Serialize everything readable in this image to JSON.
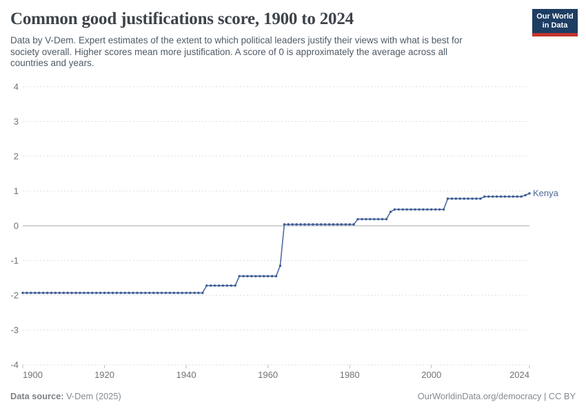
{
  "header": {
    "title": "Common good justifications score, 1900 to 2024",
    "subtitle_lines": [
      "Data by V-Dem. Expert estimates of the extent to which political leaders justify their views with what is best for",
      "society overall. Higher scores mean more justification. A score of 0 is approximately the average across all",
      "countries and years."
    ],
    "logo": {
      "line1": "Our World",
      "line2": "in Data"
    }
  },
  "footer": {
    "source_label": "Data source:",
    "source_value": " V-Dem (2025)",
    "credit": "OurWorldinData.org/democracy | CC BY"
  },
  "colors": {
    "logo_navy": "#1d3d63",
    "logo_red": "#c4352c",
    "line": "#4e6ba3",
    "marker": "#3d5c93",
    "series_label": "#4c6a9c",
    "grid": "#dcdee0",
    "zero_line": "#a0a6ab",
    "axis_text": "#6e7276",
    "tick_mark": "#b7babd"
  },
  "chart_data": {
    "type": "line",
    "title": "Common good justifications score, 1900 to 2024",
    "xlim": [
      1900,
      2024
    ],
    "ylim": [
      -4,
      4
    ],
    "x_ticks": [
      1900,
      1920,
      1940,
      1960,
      1980,
      2000,
      2024
    ],
    "y_ticks": [
      4,
      3,
      2,
      1,
      0,
      -1,
      -2,
      -3,
      -4
    ],
    "grid": "horizontal dashed, solid zero line",
    "legend_position": "end-of-line label",
    "series": [
      {
        "name": "Kenya",
        "start_year": 1900,
        "end_year": 2024,
        "segments": [
          {
            "years": "1900-1944",
            "value": -1.93
          },
          {
            "years": "1945-1952",
            "value": -1.72
          },
          {
            "years": "1953-1962",
            "value": -1.45
          },
          {
            "years": "1963",
            "value": -1.15
          },
          {
            "years": "1964-1981",
            "value": 0.04
          },
          {
            "years": "1982-1989",
            "value": 0.19
          },
          {
            "years": "1990",
            "value": 0.4
          },
          {
            "years": "1991-2003",
            "value": 0.47
          },
          {
            "years": "2004-2012",
            "value": 0.78
          },
          {
            "years": "2013-2022",
            "value": 0.84
          },
          {
            "years": "2023",
            "value": 0.88
          },
          {
            "years": "2024",
            "value": 0.93
          }
        ],
        "values": [
          -1.93,
          -1.93,
          -1.93,
          -1.93,
          -1.93,
          -1.93,
          -1.93,
          -1.93,
          -1.93,
          -1.93,
          -1.93,
          -1.93,
          -1.93,
          -1.93,
          -1.93,
          -1.93,
          -1.93,
          -1.93,
          -1.93,
          -1.93,
          -1.93,
          -1.93,
          -1.93,
          -1.93,
          -1.93,
          -1.93,
          -1.93,
          -1.93,
          -1.93,
          -1.93,
          -1.93,
          -1.93,
          -1.93,
          -1.93,
          -1.93,
          -1.93,
          -1.93,
          -1.93,
          -1.93,
          -1.93,
          -1.93,
          -1.93,
          -1.93,
          -1.93,
          -1.93,
          -1.72,
          -1.72,
          -1.72,
          -1.72,
          -1.72,
          -1.72,
          -1.72,
          -1.72,
          -1.45,
          -1.45,
          -1.45,
          -1.45,
          -1.45,
          -1.45,
          -1.45,
          -1.45,
          -1.45,
          -1.45,
          -1.15,
          0.04,
          0.04,
          0.04,
          0.04,
          0.04,
          0.04,
          0.04,
          0.04,
          0.04,
          0.04,
          0.04,
          0.04,
          0.04,
          0.04,
          0.04,
          0.04,
          0.04,
          0.04,
          0.19,
          0.19,
          0.19,
          0.19,
          0.19,
          0.19,
          0.19,
          0.19,
          0.4,
          0.47,
          0.47,
          0.47,
          0.47,
          0.47,
          0.47,
          0.47,
          0.47,
          0.47,
          0.47,
          0.47,
          0.47,
          0.47,
          0.78,
          0.78,
          0.78,
          0.78,
          0.78,
          0.78,
          0.78,
          0.78,
          0.78,
          0.84,
          0.84,
          0.84,
          0.84,
          0.84,
          0.84,
          0.84,
          0.84,
          0.84,
          0.84,
          0.88,
          0.93
        ]
      }
    ]
  }
}
